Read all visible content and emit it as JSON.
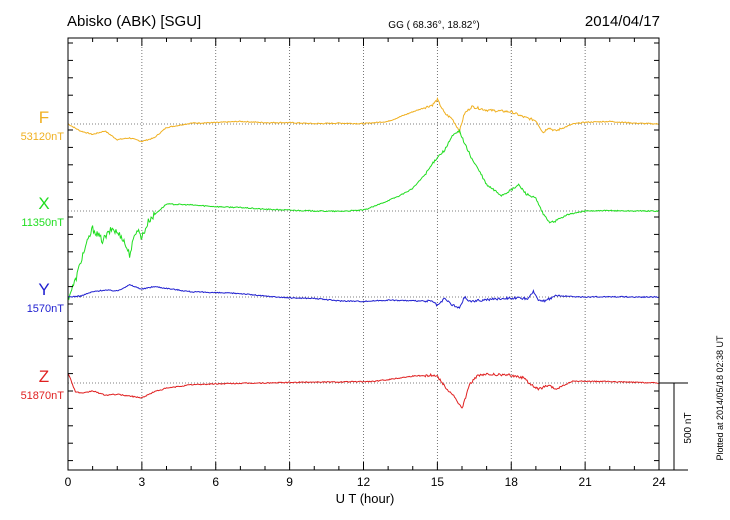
{
  "header": {
    "station": "Abisko (ABK)  [SGU]",
    "coords": "GG ( 68.36°,  18.82°)",
    "date": "2014/04/17"
  },
  "footer": {
    "plotted": "Plotted at 2014/05/18 02:38 UT",
    "scale_label": "500 nT"
  },
  "chart_data": {
    "type": "line",
    "title": "Abisko (ABK)  [SGU]",
    "xlabel": "U T (hour)",
    "ylabel": "",
    "xlim": [
      0,
      24
    ],
    "xticks": [
      0,
      3,
      6,
      9,
      12,
      15,
      18,
      21,
      24
    ],
    "tick_labels": [
      "0",
      "3",
      "6",
      "9",
      "12",
      "15",
      "18",
      "21",
      "24"
    ],
    "scale_nT": 500,
    "grid": true,
    "series": [
      {
        "name": "F",
        "baseline_label": "53120nT",
        "baseline_nT": 53120,
        "color": "#f0b020",
        "x": [
          0,
          0.5,
          1,
          1.5,
          2,
          2.5,
          3,
          3.5,
          4,
          5,
          6,
          7,
          8,
          9,
          10,
          11,
          12,
          13,
          14,
          14.8,
          15,
          15.3,
          15.6,
          15.9,
          16.1,
          16.4,
          17,
          18,
          18.5,
          19,
          19.3,
          19.5,
          19.8,
          20.5,
          21,
          22,
          23,
          24
        ],
        "y": [
          53120,
          53080,
          53060,
          53080,
          53030,
          53040,
          53020,
          53040,
          53100,
          53125,
          53128,
          53135,
          53128,
          53128,
          53122,
          53125,
          53122,
          53135,
          53190,
          53230,
          53260,
          53180,
          53150,
          53080,
          53180,
          53220,
          53200,
          53190,
          53160,
          53140,
          53070,
          53100,
          53080,
          53120,
          53130,
          53135,
          53125,
          53120
        ]
      },
      {
        "name": "X",
        "baseline_label": "11350nT",
        "baseline_nT": 11350,
        "color": "#20dd20",
        "x": [
          0,
          0.3,
          0.6,
          1,
          1.4,
          1.8,
          2.2,
          2.5,
          2.8,
          3,
          3.3,
          3.6,
          4,
          5,
          6,
          7,
          8,
          9,
          10,
          11,
          12,
          12.5,
          13,
          13.5,
          14,
          14.5,
          15,
          15.3,
          15.6,
          15.9,
          16.1,
          16.4,
          16.7,
          17,
          17.3,
          17.6,
          18,
          18.3,
          18.6,
          19,
          19.3,
          19.6,
          19.9,
          20.3,
          21,
          22,
          23,
          24
        ],
        "y": [
          10850,
          10950,
          11100,
          11250,
          11180,
          11250,
          11200,
          11100,
          11250,
          11200,
          11300,
          11340,
          11390,
          11385,
          11375,
          11370,
          11360,
          11355,
          11350,
          11348,
          11355,
          11380,
          11410,
          11440,
          11480,
          11560,
          11660,
          11700,
          11780,
          11810,
          11740,
          11650,
          11580,
          11500,
          11470,
          11440,
          11470,
          11500,
          11450,
          11420,
          11330,
          11280,
          11300,
          11330,
          11350,
          11352,
          11350,
          11350
        ]
      },
      {
        "name": "Y",
        "baseline_label": "1570nT",
        "baseline_nT": 1570,
        "color": "#2020d0",
        "x": [
          0,
          0.5,
          1,
          1.5,
          2,
          2.5,
          3,
          3.5,
          4,
          5,
          6,
          7,
          8,
          9,
          10,
          11,
          12,
          13,
          14,
          14.8,
          15,
          15.3,
          15.6,
          15.9,
          16.1,
          16.3,
          16.7,
          17,
          18,
          18.7,
          18.9,
          19.1,
          19.4,
          19.8,
          20.5,
          21,
          22,
          23,
          24
        ],
        "y": [
          1570,
          1575,
          1600,
          1610,
          1605,
          1640,
          1615,
          1630,
          1620,
          1600,
          1595,
          1590,
          1575,
          1565,
          1562,
          1548,
          1545,
          1552,
          1548,
          1545,
          1520,
          1560,
          1525,
          1505,
          1570,
          1545,
          1550,
          1555,
          1565,
          1560,
          1600,
          1555,
          1548,
          1578,
          1572,
          1570,
          1572,
          1570,
          1570
        ]
      },
      {
        "name": "Z",
        "baseline_label": "51870nT",
        "baseline_nT": 51870,
        "color": "#e02020",
        "x": [
          0,
          0.3,
          0.6,
          1,
          1.5,
          2,
          2.5,
          3,
          3.5,
          4,
          5,
          6,
          7,
          8,
          9,
          10,
          11,
          12,
          12.5,
          13,
          14,
          14.8,
          15,
          15.3,
          15.7,
          16,
          16.3,
          16.6,
          17,
          18,
          18.5,
          18.9,
          19.1,
          19.5,
          19.8,
          20.5,
          21,
          22,
          23,
          24
        ],
        "y": [
          51930,
          51820,
          51810,
          51825,
          51800,
          51805,
          51795,
          51785,
          51820,
          51840,
          51860,
          51865,
          51868,
          51870,
          51873,
          51876,
          51876,
          51878,
          51880,
          51890,
          51910,
          51915,
          51910,
          51850,
          51790,
          51720,
          51860,
          51910,
          51920,
          51915,
          51900,
          51850,
          51835,
          51855,
          51835,
          51880,
          51880,
          51878,
          51874,
          51870
        ]
      }
    ]
  }
}
